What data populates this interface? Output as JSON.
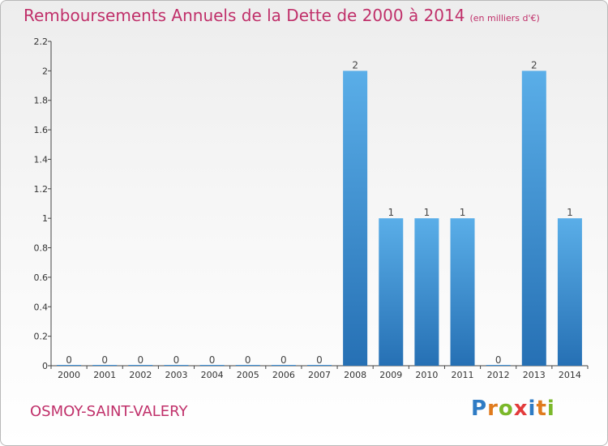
{
  "chart_data": {
    "type": "bar",
    "title": "Remboursements Annuels de la Dette de 2000 à 2014",
    "subtitle": "(en milliers d'€)",
    "categories": [
      "2000",
      "2001",
      "2002",
      "2003",
      "2004",
      "2005",
      "2006",
      "2007",
      "2008",
      "2009",
      "2010",
      "2011",
      "2012",
      "2013",
      "2014"
    ],
    "values": [
      0,
      0,
      0,
      0,
      0,
      0,
      0,
      0,
      2,
      1,
      1,
      1,
      0,
      2,
      1
    ],
    "data_labels": [
      "0",
      "0",
      "0",
      "0",
      "0",
      "0",
      "0",
      "0",
      "2",
      "1",
      "1",
      "1",
      "0",
      "2",
      "1"
    ],
    "y_ticks": [
      "0",
      "0.2",
      "0.4",
      "0.6",
      "0.8",
      "1",
      "1.2",
      "1.4",
      "1.6",
      "1.8",
      "2",
      "2.2"
    ],
    "ylim": [
      0,
      2.2
    ],
    "grid": false,
    "legend": "none",
    "bar_color": "#3d8fd6"
  },
  "commune": "OSMOY-SAINT-VALERY",
  "brand": {
    "letters": [
      "P",
      "r",
      "o",
      "x",
      "i",
      "t",
      "i"
    ],
    "colors": [
      "#2e7bc4",
      "#e07b1e",
      "#7bb82a",
      "#e33b3b",
      "#2e7bc4",
      "#e07b1e",
      "#7bb82a"
    ]
  }
}
